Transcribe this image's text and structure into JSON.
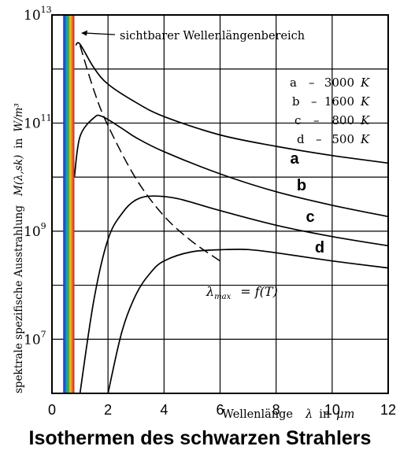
{
  "chart_data": {
    "type": "line",
    "title": "Isothermen des schwarzen Strahlers",
    "xlabel": {
      "text": "Wellenlänge",
      "symbol": "λ",
      "in": "in",
      "unit": "μm"
    },
    "ylabel": {
      "text": "spektrale spezifische Ausstrahlung",
      "symbol": "M(λ,sk)",
      "in": "in",
      "unit": "W/m³"
    },
    "x_scale": "linear",
    "y_scale": "log",
    "xlim": [
      0,
      12
    ],
    "ylim_exp": [
      6,
      13
    ],
    "x_ticks": [
      "0",
      "2",
      "4",
      "6",
      "8",
      "10",
      "12"
    ],
    "x_tick_values": [
      0,
      2,
      4,
      6,
      8,
      10,
      12
    ],
    "y_ticks": [
      {
        "base": "10",
        "exp": "13",
        "value_exp": 13
      },
      {
        "base": "10",
        "exp": "11",
        "value_exp": 11
      },
      {
        "base": "10",
        "exp": "9",
        "value_exp": 9
      },
      {
        "base": "10",
        "exp": "7",
        "value_exp": 7
      }
    ],
    "grid": true,
    "legend": {
      "position": "top-right",
      "entries": [
        {
          "key": "a",
          "sep": "–",
          "value": "3000",
          "unit": "K"
        },
        {
          "key": "b",
          "sep": "–",
          "value": "1600",
          "unit": "K"
        },
        {
          "key": "c",
          "sep": "–",
          "value": "800",
          "unit": "K"
        },
        {
          "key": "d",
          "sep": "–",
          "value": "500",
          "unit": "K"
        }
      ]
    },
    "visible_band": {
      "label": "sichtbarer Wellenlängenbereich",
      "x_range": [
        0.4,
        0.8
      ]
    },
    "wien_line": {
      "label_symbol": "λ",
      "label_sub": "max",
      "label_rest": "= f(T)",
      "style": "dashed"
    },
    "series": [
      {
        "name": "a",
        "temperature_K": 3000,
        "x": [
          0.85,
          1.0,
          1.5,
          2,
          3,
          4,
          6,
          8,
          10,
          12
        ],
        "y_exp": [
          12.44,
          12.46,
          12.02,
          11.72,
          11.38,
          11.12,
          10.78,
          10.57,
          10.4,
          10.26
        ]
      },
      {
        "name": "b",
        "temperature_K": 1600,
        "x": [
          0.8,
          1.0,
          1.5,
          1.8,
          2.5,
          3,
          4,
          6,
          8,
          10,
          12
        ],
        "y_exp": [
          10.0,
          10.75,
          11.1,
          11.12,
          10.9,
          10.73,
          10.47,
          10.06,
          9.73,
          9.48,
          9.27
        ]
      },
      {
        "name": "c",
        "temperature_K": 800,
        "x": [
          1.0,
          1.5,
          2.0,
          2.5,
          3.0,
          3.6,
          4.5,
          6,
          8,
          10,
          12
        ],
        "y_exp": [
          6.0,
          7.74,
          8.85,
          9.33,
          9.58,
          9.65,
          9.6,
          9.38,
          9.11,
          8.9,
          8.73
        ]
      },
      {
        "name": "d",
        "temperature_K": 500,
        "x": [
          2.0,
          2.5,
          3.0,
          3.5,
          4.0,
          5.0,
          6.2,
          7,
          8,
          10,
          12
        ],
        "y_exp": [
          6.0,
          7.15,
          7.83,
          8.22,
          8.45,
          8.62,
          8.66,
          8.66,
          8.6,
          8.45,
          8.32
        ]
      }
    ],
    "wien_curve": {
      "x": [
        1.0,
        1.5,
        2.0,
        3.0,
        4.0,
        5.0,
        6.0
      ],
      "y_exp": [
        12.44,
        11.6,
        10.95,
        9.97,
        9.28,
        8.81,
        8.45
      ]
    }
  }
}
